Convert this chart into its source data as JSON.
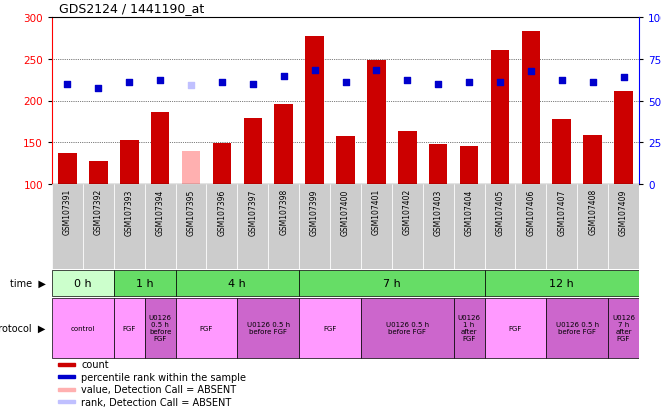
{
  "title": "GDS2124 / 1441190_at",
  "samples": [
    "GSM107391",
    "GSM107392",
    "GSM107393",
    "GSM107394",
    "GSM107395",
    "GSM107396",
    "GSM107397",
    "GSM107398",
    "GSM107399",
    "GSM107400",
    "GSM107401",
    "GSM107402",
    "GSM107403",
    "GSM107404",
    "GSM107405",
    "GSM107406",
    "GSM107407",
    "GSM107408",
    "GSM107409"
  ],
  "bar_values": [
    137,
    127,
    153,
    186,
    140,
    149,
    179,
    196,
    277,
    157,
    248,
    163,
    148,
    146,
    261,
    283,
    178,
    159,
    211
  ],
  "bar_absent": [
    false,
    false,
    false,
    false,
    true,
    false,
    false,
    false,
    false,
    false,
    false,
    false,
    false,
    false,
    false,
    false,
    false,
    false,
    false
  ],
  "dot_values": [
    220,
    215,
    222,
    225,
    218,
    222,
    220,
    229,
    237,
    222,
    237,
    224,
    220,
    222,
    222,
    235,
    224,
    222,
    228
  ],
  "dot_absent": [
    false,
    false,
    false,
    false,
    true,
    false,
    false,
    false,
    false,
    false,
    false,
    false,
    false,
    false,
    false,
    false,
    false,
    false,
    false
  ],
  "ylim_left": [
    100,
    300
  ],
  "ylim_right": [
    0,
    100
  ],
  "yticks_left": [
    100,
    150,
    200,
    250,
    300
  ],
  "yticks_right": [
    0,
    25,
    50,
    75,
    100
  ],
  "bar_color": "#cc0000",
  "bar_absent_color": "#ffb0b0",
  "dot_color": "#0000cc",
  "dot_absent_color": "#c0c0ff",
  "grid_color": "#000000",
  "chart_bg": "#ffffff",
  "label_bg": "#cccccc",
  "time_color_light": "#ccffcc",
  "time_color_dark": "#66dd66",
  "proto_color_fgf": "#ff99ff",
  "proto_color_u0126": "#cc66cc",
  "time_groups": [
    {
      "label": "0 h",
      "start": 0,
      "end": 2
    },
    {
      "label": "1 h",
      "start": 2,
      "end": 4
    },
    {
      "label": "4 h",
      "start": 4,
      "end": 8
    },
    {
      "label": "7 h",
      "start": 8,
      "end": 14
    },
    {
      "label": "12 h",
      "start": 14,
      "end": 19
    }
  ],
  "protocol_groups": [
    {
      "label": "control",
      "start": 0,
      "end": 2,
      "type": "fgf"
    },
    {
      "label": "FGF",
      "start": 2,
      "end": 3,
      "type": "fgf"
    },
    {
      "label": "U0126\n0.5 h\nbefore\nFGF",
      "start": 3,
      "end": 4,
      "type": "u0126"
    },
    {
      "label": "FGF",
      "start": 4,
      "end": 6,
      "type": "fgf"
    },
    {
      "label": "U0126 0.5 h\nbefore FGF",
      "start": 6,
      "end": 8,
      "type": "u0126"
    },
    {
      "label": "FGF",
      "start": 8,
      "end": 10,
      "type": "fgf"
    },
    {
      "label": "U0126 0.5 h\nbefore FGF",
      "start": 10,
      "end": 13,
      "type": "u0126"
    },
    {
      "label": "U0126\n1 h\nafter\nFGF",
      "start": 13,
      "end": 14,
      "type": "u0126"
    },
    {
      "label": "FGF",
      "start": 14,
      "end": 16,
      "type": "fgf"
    },
    {
      "label": "U0126 0.5 h\nbefore FGF",
      "start": 16,
      "end": 18,
      "type": "u0126"
    },
    {
      "label": "U0126\n7 h\nafter\nFGF",
      "start": 18,
      "end": 19,
      "type": "u0126"
    }
  ],
  "legend_items": [
    {
      "label": "count",
      "color": "#cc0000"
    },
    {
      "label": "percentile rank within the sample",
      "color": "#0000cc"
    },
    {
      "label": "value, Detection Call = ABSENT",
      "color": "#ffb0b0"
    },
    {
      "label": "rank, Detection Call = ABSENT",
      "color": "#c0c0ff"
    }
  ]
}
